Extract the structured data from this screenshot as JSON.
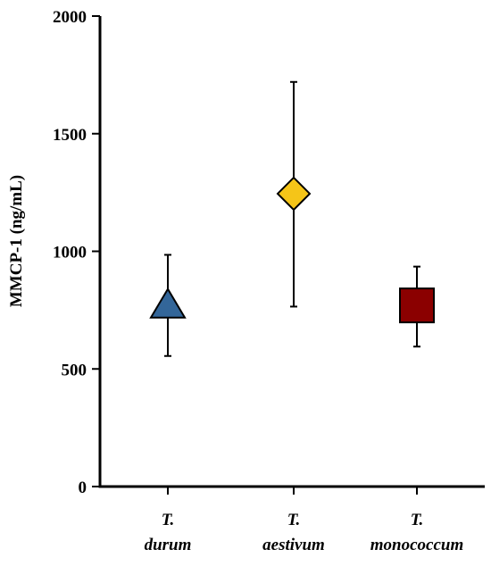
{
  "chart_data": {
    "type": "scatter",
    "title": "",
    "xlabel": "",
    "ylabel": "MMCP-1 (ng/mL)",
    "ylim": [
      0,
      2000
    ],
    "yticks": [
      "0",
      "500",
      "1000",
      "1500",
      "2000"
    ],
    "grid": false,
    "legend": "none",
    "categories": [
      {
        "lines": [
          "T.",
          "durum"
        ]
      },
      {
        "lines": [
          "T.",
          "aestivum"
        ]
      },
      {
        "lines": [
          "T.",
          "monococcum"
        ]
      }
    ],
    "points": [
      {
        "category_index": 0,
        "marker": "triangle-up",
        "color": "#336699",
        "mean": 760,
        "lower": 555,
        "upper": 985
      },
      {
        "category_index": 1,
        "marker": "diamond",
        "color": "#F5C518",
        "mean": 1245,
        "lower": 765,
        "upper": 1720
      },
      {
        "category_index": 2,
        "marker": "square",
        "color": "#8B0000",
        "mean": 770,
        "lower": 595,
        "upper": 935
      }
    ]
  }
}
